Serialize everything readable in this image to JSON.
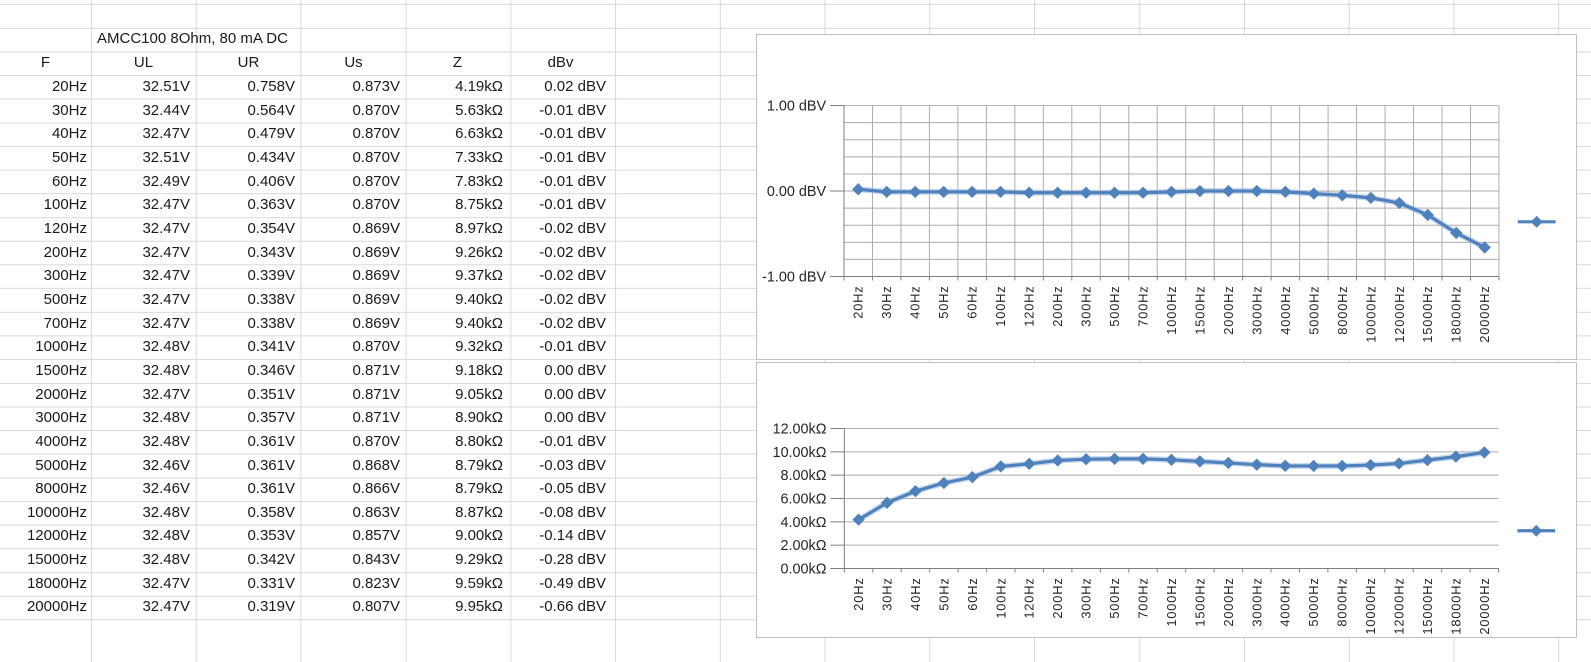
{
  "sheet": {
    "title": "AMCC100 8Ohm, 80 mA DC",
    "columns": [
      "F",
      "UL",
      "UR",
      "Us",
      "Z",
      "dBv"
    ],
    "rows": [
      [
        "20Hz",
        "32.51V",
        "0.758V",
        "0.873V",
        "4.19kΩ",
        "0.02 dBV"
      ],
      [
        "30Hz",
        "32.44V",
        "0.564V",
        "0.870V",
        "5.63kΩ",
        "-0.01 dBV"
      ],
      [
        "40Hz",
        "32.47V",
        "0.479V",
        "0.870V",
        "6.63kΩ",
        "-0.01 dBV"
      ],
      [
        "50Hz",
        "32.51V",
        "0.434V",
        "0.870V",
        "7.33kΩ",
        "-0.01 dBV"
      ],
      [
        "60Hz",
        "32.49V",
        "0.406V",
        "0.870V",
        "7.83kΩ",
        "-0.01 dBV"
      ],
      [
        "100Hz",
        "32.47V",
        "0.363V",
        "0.870V",
        "8.75kΩ",
        "-0.01 dBV"
      ],
      [
        "120Hz",
        "32.47V",
        "0.354V",
        "0.869V",
        "8.97kΩ",
        "-0.02 dBV"
      ],
      [
        "200Hz",
        "32.47V",
        "0.343V",
        "0.869V",
        "9.26kΩ",
        "-0.02 dBV"
      ],
      [
        "300Hz",
        "32.47V",
        "0.339V",
        "0.869V",
        "9.37kΩ",
        "-0.02 dBV"
      ],
      [
        "500Hz",
        "32.47V",
        "0.338V",
        "0.869V",
        "9.40kΩ",
        "-0.02 dBV"
      ],
      [
        "700Hz",
        "32.47V",
        "0.338V",
        "0.869V",
        "9.40kΩ",
        "-0.02 dBV"
      ],
      [
        "1000Hz",
        "32.48V",
        "0.341V",
        "0.870V",
        "9.32kΩ",
        "-0.01 dBV"
      ],
      [
        "1500Hz",
        "32.48V",
        "0.346V",
        "0.871V",
        "9.18kΩ",
        "0.00 dBV"
      ],
      [
        "2000Hz",
        "32.47V",
        "0.351V",
        "0.871V",
        "9.05kΩ",
        "0.00 dBV"
      ],
      [
        "3000Hz",
        "32.48V",
        "0.357V",
        "0.871V",
        "8.90kΩ",
        "0.00 dBV"
      ],
      [
        "4000Hz",
        "32.48V",
        "0.361V",
        "0.870V",
        "8.80kΩ",
        "-0.01 dBV"
      ],
      [
        "5000Hz",
        "32.46V",
        "0.361V",
        "0.868V",
        "8.79kΩ",
        "-0.03 dBV"
      ],
      [
        "8000Hz",
        "32.46V",
        "0.361V",
        "0.866V",
        "8.79kΩ",
        "-0.05 dBV"
      ],
      [
        "10000Hz",
        "32.48V",
        "0.358V",
        "0.863V",
        "8.87kΩ",
        "-0.08 dBV"
      ],
      [
        "12000Hz",
        "32.48V",
        "0.353V",
        "0.857V",
        "9.00kΩ",
        "-0.14 dBV"
      ],
      [
        "15000Hz",
        "32.48V",
        "0.342V",
        "0.843V",
        "9.29kΩ",
        "-0.28 dBV"
      ],
      [
        "18000Hz",
        "32.47V",
        "0.331V",
        "0.823V",
        "9.59kΩ",
        "-0.49 dBV"
      ],
      [
        "20000Hz",
        "32.47V",
        "0.319V",
        "0.807V",
        "9.95kΩ",
        "-0.66 dBV"
      ]
    ]
  },
  "chart_data": [
    {
      "type": "line",
      "title": "",
      "categories": [
        "20Hz",
        "30Hz",
        "40Hz",
        "50Hz",
        "60Hz",
        "100Hz",
        "120Hz",
        "200Hz",
        "300Hz",
        "500Hz",
        "700Hz",
        "1000Hz",
        "1500Hz",
        "2000Hz",
        "3000Hz",
        "4000Hz",
        "5000Hz",
        "8000Hz",
        "10000Hz",
        "12000Hz",
        "15000Hz",
        "18000Hz",
        "20000Hz"
      ],
      "series": [
        {
          "name": "",
          "values": [
            0.02,
            -0.01,
            -0.01,
            -0.01,
            -0.01,
            -0.01,
            -0.02,
            -0.02,
            -0.02,
            -0.02,
            -0.02,
            -0.01,
            0.0,
            0.0,
            0.0,
            -0.01,
            -0.03,
            -0.05,
            -0.08,
            -0.14,
            -0.28,
            -0.49,
            -0.66
          ]
        }
      ],
      "xlabel": "",
      "ylabel": "dBV",
      "ylim": [
        -1.0,
        1.0
      ],
      "ytick_labels": [
        "1.00 dBV",
        "0.00 dBV",
        "-1.00 dBV"
      ],
      "ytick_step": 1.0,
      "grid_step": 0.2,
      "vertical_grid": true,
      "legend_position": "right",
      "legend_text": "",
      "marker": "diamond"
    },
    {
      "type": "line",
      "title": "",
      "categories": [
        "20Hz",
        "30Hz",
        "40Hz",
        "50Hz",
        "60Hz",
        "100Hz",
        "120Hz",
        "200Hz",
        "300Hz",
        "500Hz",
        "700Hz",
        "1000Hz",
        "1500Hz",
        "2000Hz",
        "3000Hz",
        "4000Hz",
        "5000Hz",
        "8000Hz",
        "10000Hz",
        "12000Hz",
        "15000Hz",
        "18000Hz",
        "20000Hz"
      ],
      "series": [
        {
          "name": "",
          "values": [
            4.19,
            5.63,
            6.63,
            7.33,
            7.83,
            8.75,
            8.97,
            9.26,
            9.37,
            9.4,
            9.4,
            9.32,
            9.18,
            9.05,
            8.9,
            8.8,
            8.79,
            8.79,
            8.87,
            9.0,
            9.29,
            9.59,
            9.95
          ]
        }
      ],
      "xlabel": "",
      "ylabel": "kΩ",
      "ylim": [
        0,
        12
      ],
      "ytick_labels": [
        "12.00kΩ",
        "10.00kΩ",
        "8.00kΩ",
        "6.00kΩ",
        "4.00kΩ",
        "2.00kΩ",
        "0.00kΩ"
      ],
      "ytick_step": 2.0,
      "grid_step": 2.0,
      "vertical_grid": false,
      "legend_position": "right",
      "legend_text": "",
      "marker": "diamond"
    }
  ],
  "colors": {
    "series_blue": "#4F81BD",
    "series_halo": "#9EBADF",
    "chart_gridline": "#acacac",
    "chart_axis": "#7f7f7f",
    "chart_border": "#bfbfbf",
    "sheet_gridline": "#d9d9d9"
  }
}
